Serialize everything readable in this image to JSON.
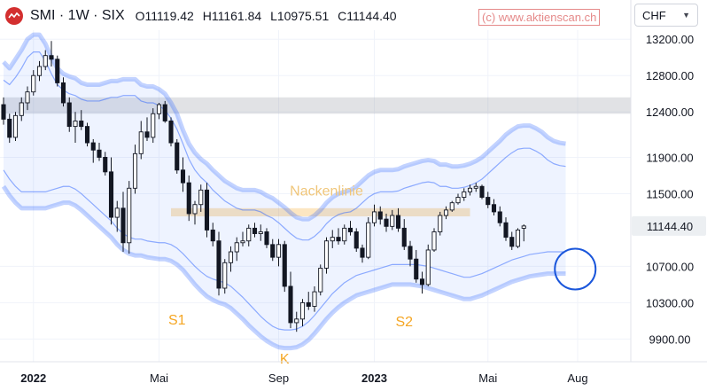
{
  "header": {
    "symbol": "SMI · 1W · SIX",
    "open": "O11119.42",
    "high": "H11161.84",
    "low": "L10975.51",
    "close": "C11144.40"
  },
  "watermark": "(c) www.aktienscan.ch",
  "currency": {
    "selected": "CHF"
  },
  "colors": {
    "up": "#131722",
    "down": "#131722",
    "band": "#2962ff",
    "resistance": "#f5a623",
    "zone": "#9598a1",
    "marker": "#1a56db"
  },
  "chart_data": {
    "type": "candlestick",
    "y_range": [
      9650,
      13300
    ],
    "y_ticks": [
      {
        "value": 13200,
        "label": "13200.00"
      },
      {
        "value": 12800,
        "label": "12800.00"
      },
      {
        "value": 12400,
        "label": "12400.00"
      },
      {
        "value": 11900,
        "label": "11900.00"
      },
      {
        "value": 11500,
        "label": "11500.00"
      },
      {
        "value": 10700,
        "label": "10700.00"
      },
      {
        "value": 10300,
        "label": "10300.00"
      },
      {
        "value": 9900,
        "label": "9900.00"
      }
    ],
    "last_price": {
      "value": 11144.4,
      "label": "11144.40"
    },
    "x_labels": [
      {
        "week": 5,
        "label": "2022",
        "bold": true
      },
      {
        "week": 26,
        "label": "Mai",
        "bold": false
      },
      {
        "week": 46,
        "label": "Sep",
        "bold": false
      },
      {
        "week": 62,
        "label": "2023",
        "bold": true
      },
      {
        "week": 81,
        "label": "Mai",
        "bold": false
      },
      {
        "week": 96,
        "label": "Aug",
        "bold": false
      }
    ],
    "zones": [
      {
        "name": "resistance-zone-top",
        "from": 12380,
        "to": 12560,
        "start_week": 0,
        "end_week": 105
      },
      {
        "name": "neckline-zone",
        "from": 11250,
        "to": 11340,
        "start_week": 28,
        "end_week": 78
      }
    ],
    "annotations": [
      {
        "name": "neckline-label",
        "text": "Nackenlinie",
        "week": 54,
        "value": 11480
      },
      {
        "name": "s1-label",
        "text": "S1",
        "week": 29,
        "value": 10060
      },
      {
        "name": "head-label",
        "text": "K",
        "week": 47,
        "value": 9630
      },
      {
        "name": "s2-label",
        "text": "S2",
        "week": 67,
        "value": 10040
      }
    ],
    "circle_marker": {
      "week": 95,
      "value": 10670
    },
    "band_outer_upper": [
      12950,
      12880,
      12980,
      13080,
      13200,
      13250,
      13250,
      13150,
      13000,
      12880,
      12820,
      12790,
      12770,
      12720,
      12700,
      12700,
      12700,
      12720,
      12740,
      12740,
      12760,
      12760,
      12760,
      12700,
      12680,
      12680,
      12650,
      12600,
      12500,
      12380,
      12200,
      12050,
      11950,
      11880,
      11830,
      11760,
      11700,
      11640,
      11600,
      11560,
      11540,
      11540,
      11540,
      11520,
      11480,
      11450,
      11400,
      11350,
      11290,
      11240,
      11220,
      11220,
      11260,
      11320,
      11400,
      11460,
      11500,
      11520,
      11540,
      11580,
      11640,
      11700,
      11740,
      11760,
      11760,
      11760,
      11770,
      11800,
      11820,
      11840,
      11860,
      11870,
      11860,
      11820,
      11820,
      11800,
      11800,
      11810,
      11830,
      11860,
      11900,
      11960,
      12020,
      12080,
      12150,
      12200,
      12240,
      12250,
      12250,
      12220,
      12180,
      12120,
      12080,
      12060,
      12050
    ],
    "band_inner_upper": [
      12750,
      12700,
      12780,
      12880,
      13000,
      13060,
      13060,
      12960,
      12820,
      12700,
      12640,
      12600,
      12580,
      12540,
      12520,
      12520,
      12520,
      12540,
      12560,
      12560,
      12580,
      12580,
      12580,
      12520,
      12500,
      12500,
      12470,
      12420,
      12330,
      12210,
      12050,
      11880,
      11760,
      11680,
      11620,
      11540,
      11480,
      11420,
      11380,
      11340,
      11320,
      11320,
      11320,
      11300,
      11260,
      11230,
      11180,
      11120,
      11060,
      11010,
      10990,
      10990,
      11030,
      11090,
      11170,
      11230,
      11270,
      11290,
      11300,
      11340,
      11400,
      11460,
      11500,
      11520,
      11520,
      11520,
      11530,
      11560,
      11580,
      11600,
      11620,
      11630,
      11620,
      11580,
      11580,
      11560,
      11560,
      11570,
      11590,
      11620,
      11660,
      11720,
      11780,
      11840,
      11900,
      11950,
      11990,
      12000,
      12000,
      11970,
      11930,
      11870,
      11830,
      11810,
      11800
    ],
    "band_inner_lower": [
      11760,
      11660,
      11580,
      11520,
      11520,
      11520,
      11520,
      11520,
      11540,
      11560,
      11580,
      11580,
      11550,
      11500,
      11440,
      11380,
      11320,
      11260,
      11200,
      11120,
      11060,
      11020,
      11000,
      11000,
      10980,
      10970,
      10960,
      10960,
      10940,
      10900,
      10840,
      10770,
      10700,
      10640,
      10590,
      10560,
      10540,
      10520,
      10480,
      10420,
      10360,
      10290,
      10220,
      10150,
      10090,
      10040,
      10010,
      10000,
      10000,
      10010,
      10040,
      10090,
      10160,
      10240,
      10320,
      10400,
      10460,
      10520,
      10560,
      10600,
      10620,
      10640,
      10660,
      10680,
      10700,
      10720,
      10720,
      10720,
      10720,
      10720,
      10710,
      10700,
      10680,
      10660,
      10640,
      10620,
      10600,
      10580,
      10580,
      10600,
      10620,
      10650,
      10680,
      10710,
      10740,
      10770,
      10790,
      10810,
      10830,
      10840,
      10850,
      10860,
      10860,
      10860,
      10860
    ],
    "band_outer_lower": [
      11580,
      11480,
      11400,
      11340,
      11340,
      11340,
      11340,
      11340,
      11360,
      11380,
      11400,
      11400,
      11370,
      11320,
      11260,
      11200,
      11140,
      11080,
      11020,
      10940,
      10880,
      10840,
      10820,
      10820,
      10800,
      10790,
      10780,
      10780,
      10760,
      10720,
      10660,
      10580,
      10500,
      10430,
      10370,
      10330,
      10300,
      10280,
      10240,
      10180,
      10120,
      10050,
      9990,
      9930,
      9880,
      9840,
      9810,
      9800,
      9800,
      9810,
      9840,
      9890,
      9960,
      10040,
      10120,
      10190,
      10250,
      10300,
      10340,
      10380,
      10400,
      10420,
      10440,
      10460,
      10480,
      10500,
      10500,
      10500,
      10500,
      10490,
      10480,
      10460,
      10440,
      10420,
      10400,
      10380,
      10360,
      10340,
      10340,
      10360,
      10380,
      10410,
      10440,
      10470,
      10500,
      10530,
      10550,
      10570,
      10590,
      10600,
      10610,
      10620,
      10620,
      10620,
      10620
    ],
    "candles": [
      [
        12480,
        12560,
        12260,
        12320
      ],
      [
        12320,
        12380,
        12060,
        12120
      ],
      [
        12120,
        12400,
        12080,
        12360
      ],
      [
        12360,
        12560,
        12300,
        12500
      ],
      [
        12500,
        12680,
        12420,
        12620
      ],
      [
        12620,
        12860,
        12580,
        12800
      ],
      [
        12800,
        12960,
        12740,
        12900
      ],
      [
        12900,
        13080,
        12860,
        13020
      ],
      [
        13020,
        13180,
        12900,
        12980
      ],
      [
        12980,
        13020,
        12680,
        12720
      ],
      [
        12720,
        12780,
        12460,
        12500
      ],
      [
        12500,
        12560,
        12180,
        12240
      ],
      [
        12240,
        12400,
        12060,
        12300
      ],
      [
        12300,
        12420,
        12200,
        12240
      ],
      [
        12240,
        12280,
        12020,
        12060
      ],
      [
        12060,
        12100,
        11840,
        11980
      ],
      [
        11980,
        12060,
        11860,
        11900
      ],
      [
        11900,
        11960,
        11700,
        11740
      ],
      [
        11740,
        11900,
        11160,
        11240
      ],
      [
        11240,
        11420,
        11080,
        11340
      ],
      [
        11340,
        11520,
        10860,
        10960
      ],
      [
        10960,
        11640,
        10840,
        11560
      ],
      [
        11560,
        12040,
        11500,
        11940
      ],
      [
        11940,
        12300,
        11880,
        12180
      ],
      [
        12180,
        12340,
        12080,
        12120
      ],
      [
        12120,
        12440,
        12060,
        12380
      ],
      [
        12380,
        12500,
        12320,
        12480
      ],
      [
        12480,
        12520,
        12280,
        12300
      ],
      [
        12300,
        12340,
        12020,
        12060
      ],
      [
        12060,
        12100,
        11720,
        11760
      ],
      [
        11760,
        11900,
        11520,
        11620
      ],
      [
        11620,
        11700,
        11200,
        11280
      ],
      [
        11280,
        11420,
        11160,
        11380
      ],
      [
        11380,
        11600,
        11300,
        11540
      ],
      [
        11540,
        11620,
        11020,
        11100
      ],
      [
        11100,
        11180,
        10920,
        10980
      ],
      [
        10980,
        11080,
        10380,
        10460
      ],
      [
        10460,
        10780,
        10400,
        10740
      ],
      [
        10740,
        10920,
        10640,
        10860
      ],
      [
        10860,
        11020,
        10760,
        10960
      ],
      [
        10960,
        11080,
        10920,
        10980
      ],
      [
        10980,
        11160,
        10920,
        11120
      ],
      [
        11120,
        11180,
        11020,
        11060
      ],
      [
        11060,
        11160,
        10980,
        11080
      ],
      [
        11080,
        11120,
        10900,
        10940
      ],
      [
        10940,
        11000,
        10760,
        10800
      ],
      [
        10800,
        11000,
        10700,
        10940
      ],
      [
        10940,
        10980,
        10420,
        10480
      ],
      [
        10480,
        10640,
        10020,
        10080
      ],
      [
        10080,
        10200,
        9980,
        10120
      ],
      [
        10120,
        10340,
        10040,
        10300
      ],
      [
        10300,
        10420,
        10220,
        10260
      ],
      [
        10260,
        10480,
        10200,
        10420
      ],
      [
        10420,
        10720,
        10380,
        10680
      ],
      [
        10680,
        11020,
        10620,
        10980
      ],
      [
        10980,
        11100,
        10900,
        11020
      ],
      [
        11020,
        11120,
        10940,
        10980
      ],
      [
        10980,
        11160,
        10940,
        11120
      ],
      [
        11120,
        11200,
        11040,
        11080
      ],
      [
        11080,
        11120,
        10860,
        10900
      ],
      [
        10900,
        10940,
        10740,
        10800
      ],
      [
        10800,
        11240,
        10780,
        11180
      ],
      [
        11180,
        11380,
        11140,
        11300
      ],
      [
        11300,
        11360,
        11160,
        11220
      ],
      [
        11220,
        11280,
        11080,
        11140
      ],
      [
        11140,
        11320,
        11100,
        11260
      ],
      [
        11260,
        11340,
        11080,
        11120
      ],
      [
        11120,
        11220,
        10880,
        10920
      ],
      [
        10920,
        10980,
        10700,
        10780
      ],
      [
        10780,
        10880,
        10520,
        10560
      ],
      [
        10560,
        10640,
        10400,
        10500
      ],
      [
        10500,
        10940,
        10480,
        10880
      ],
      [
        10880,
        11120,
        10860,
        11080
      ],
      [
        11080,
        11300,
        11040,
        11260
      ],
      [
        11260,
        11360,
        11220,
        11320
      ],
      [
        11320,
        11420,
        11300,
        11400
      ],
      [
        11400,
        11500,
        11380,
        11460
      ],
      [
        11460,
        11560,
        11420,
        11520
      ],
      [
        11520,
        11600,
        11480,
        11560
      ],
      [
        11560,
        11620,
        11520,
        11580
      ],
      [
        11580,
        11600,
        11440,
        11460
      ],
      [
        11460,
        11520,
        11340,
        11380
      ],
      [
        11380,
        11440,
        11260,
        11300
      ],
      [
        11300,
        11360,
        11140,
        11180
      ],
      [
        11180,
        11240,
        10980,
        11020
      ],
      [
        11020,
        11080,
        10880,
        10920
      ],
      [
        10920,
        11120,
        10900,
        11100
      ],
      [
        11119.42,
        11161.84,
        10975.51,
        11144.4
      ]
    ]
  }
}
